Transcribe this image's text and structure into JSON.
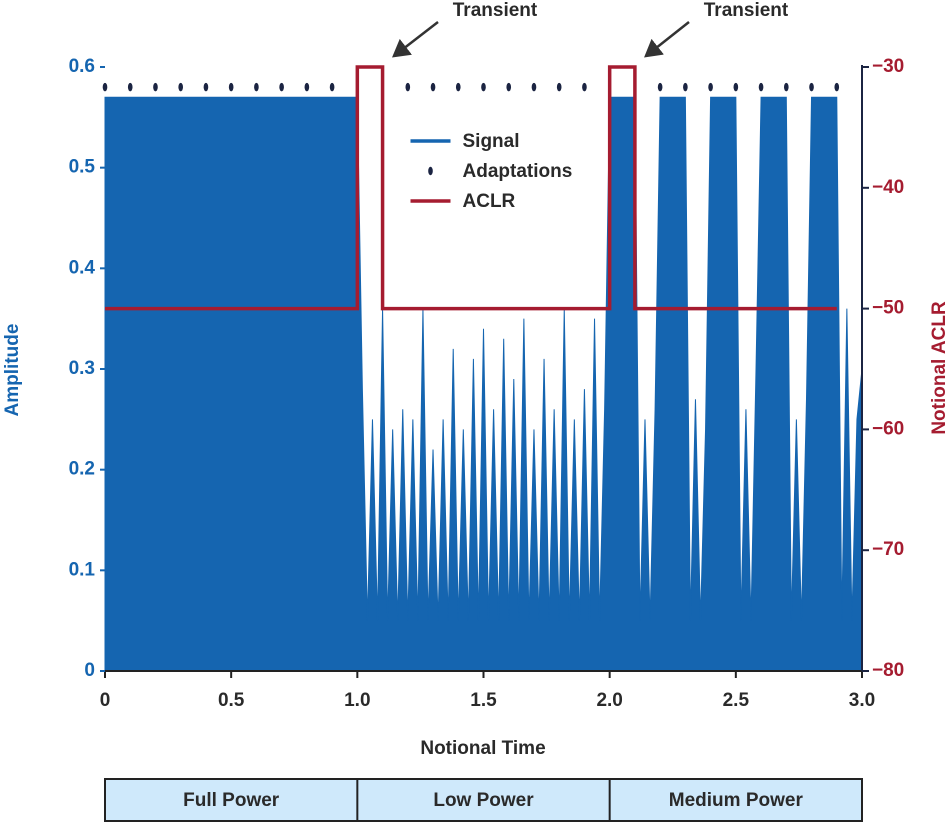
{
  "chart_data": {
    "type": "line",
    "xlabel": "Notional Time",
    "ylabel": "Amplitude",
    "y2label": "Notional ACLR",
    "xlim": [
      0,
      3
    ],
    "xticks": [
      0,
      0.5,
      {
        "value": 1,
        "label": "1.0"
      },
      1.5,
      {
        "value": 2,
        "label": "2.0"
      },
      2.5,
      {
        "value": 3,
        "label": "3.0"
      }
    ],
    "ylim": [
      0,
      0.6
    ],
    "yticks": [
      0,
      0.1,
      0.2,
      0.3,
      0.4,
      0.5,
      0.6
    ],
    "y2lim": [
      -80,
      -30
    ],
    "y2ticks": [
      {
        "value": -80,
        "label": "−80"
      },
      {
        "value": -70,
        "label": "−70"
      },
      {
        "value": -60,
        "label": "−60"
      },
      {
        "value": -50,
        "label": "−50"
      },
      {
        "value": -40,
        "label": "−40"
      },
      {
        "value": -30,
        "label": "−30"
      }
    ],
    "grid": false,
    "legend": "upper center",
    "annotations": [
      "Transient",
      "Transient"
    ],
    "phases": [
      "Full Power",
      "Low Power",
      "Medium Power"
    ],
    "series": [
      {
        "name": "Signal",
        "type": "area",
        "color": "#1565b0",
        "x": [
          0,
          0.02,
          0.04,
          0.06,
          0.08,
          0.1,
          0.12,
          0.14,
          0.16,
          0.18,
          0.2,
          0.22,
          0.24,
          0.26,
          0.28,
          0.3,
          0.32,
          0.34,
          0.36,
          0.38,
          0.4,
          0.42,
          0.44,
          0.46,
          0.48,
          0.5,
          0.52,
          0.54,
          0.56,
          0.58,
          0.6,
          0.62,
          0.64,
          0.66,
          0.68,
          0.7,
          0.72,
          0.74,
          0.76,
          0.78,
          0.8,
          0.82,
          0.84,
          0.86,
          0.88,
          0.9,
          0.92,
          0.94,
          0.96,
          0.98,
          1,
          1.02,
          1.04,
          1.06,
          1.08,
          1.1,
          1.12,
          1.14,
          1.16,
          1.18,
          1.2,
          1.22,
          1.24,
          1.26,
          1.28,
          1.3,
          1.32,
          1.34,
          1.36,
          1.38,
          1.4,
          1.42,
          1.44,
          1.46,
          1.48,
          1.5,
          1.52,
          1.54,
          1.56,
          1.58,
          1.6,
          1.62,
          1.64,
          1.66,
          1.68,
          1.7,
          1.72,
          1.74,
          1.76,
          1.78,
          1.8,
          1.82,
          1.84,
          1.86,
          1.88,
          1.9,
          1.92,
          1.94,
          1.96,
          1.98,
          2,
          2.02,
          2.04,
          2.06,
          2.08,
          2.1,
          2.12,
          2.14,
          2.16,
          2.18,
          2.2,
          2.22,
          2.24,
          2.26,
          2.28,
          2.3,
          2.32,
          2.34,
          2.36,
          2.38,
          2.4,
          2.42,
          2.44,
          2.46,
          2.48,
          2.5,
          2.52,
          2.54,
          2.56,
          2.58,
          2.6,
          2.62,
          2.64,
          2.66,
          2.68,
          2.7,
          2.72,
          2.74,
          2.76,
          2.78,
          2.8,
          2.82,
          2.84,
          2.86,
          2.88,
          2.9,
          2.92,
          2.94,
          2.96,
          2.98,
          3
        ],
        "values": [
          0.57,
          0.57,
          0.57,
          0.57,
          0.57,
          0.57,
          0.57,
          0.57,
          0.57,
          0.57,
          0.57,
          0.57,
          0.57,
          0.57,
          0.57,
          0.57,
          0.57,
          0.57,
          0.57,
          0.57,
          0.57,
          0.57,
          0.57,
          0.57,
          0.57,
          0.57,
          0.57,
          0.57,
          0.57,
          0.57,
          0.57,
          0.57,
          0.57,
          0.57,
          0.57,
          0.57,
          0.57,
          0.57,
          0.57,
          0.57,
          0.57,
          0.57,
          0.57,
          0.57,
          0.57,
          0.57,
          0.57,
          0.57,
          0.57,
          0.57,
          0.57,
          0.28,
          0.05,
          0.25,
          0.05,
          0.36,
          0.05,
          0.24,
          0.05,
          0.26,
          0.05,
          0.25,
          0.05,
          0.36,
          0.05,
          0.22,
          0.05,
          0.25,
          0.05,
          0.32,
          0.05,
          0.24,
          0.05,
          0.31,
          0.05,
          0.34,
          0.05,
          0.26,
          0.05,
          0.33,
          0.05,
          0.29,
          0.05,
          0.35,
          0.05,
          0.24,
          0.05,
          0.31,
          0.05,
          0.26,
          0.05,
          0.36,
          0.05,
          0.25,
          0.05,
          0.28,
          0.05,
          0.35,
          0.05,
          0.26,
          0.57,
          0.57,
          0.57,
          0.57,
          0.57,
          0.57,
          0.05,
          0.25,
          0.05,
          0.26,
          0.57,
          0.57,
          0.57,
          0.57,
          0.57,
          0.57,
          0.05,
          0.27,
          0.05,
          0.24,
          0.57,
          0.57,
          0.57,
          0.57,
          0.57,
          0.57,
          0.05,
          0.26,
          0.05,
          0.3,
          0.57,
          0.57,
          0.57,
          0.57,
          0.57,
          0.57,
          0.05,
          0.25,
          0.05,
          0.27,
          0.57,
          0.57,
          0.57,
          0.57,
          0.57,
          0.57,
          0.05,
          0.36,
          0.05,
          0.25,
          0.3
        ]
      },
      {
        "name": "Adaptations",
        "type": "scatter",
        "color": "#1b2442",
        "x": [
          0,
          0.1,
          0.2,
          0.3,
          0.4,
          0.5,
          0.6,
          0.7,
          0.8,
          0.9,
          1.2,
          1.3,
          1.4,
          1.5,
          1.6,
          1.7,
          1.8,
          1.9,
          2.2,
          2.3,
          2.4,
          2.5,
          2.6,
          2.7,
          2.8,
          2.9
        ],
        "values": [
          0.58,
          0.58,
          0.58,
          0.58,
          0.58,
          0.58,
          0.58,
          0.58,
          0.58,
          0.58,
          0.58,
          0.58,
          0.58,
          0.58,
          0.58,
          0.58,
          0.58,
          0.58,
          0.58,
          0.58,
          0.58,
          0.58,
          0.58,
          0.58,
          0.58,
          0.58
        ]
      },
      {
        "name": "ACLR",
        "type": "line",
        "axis": "y2",
        "color": "#a51c30",
        "x": [
          0,
          1,
          1,
          1.1,
          1.1,
          2,
          2,
          2.1,
          2.1,
          2.9
        ],
        "values": [
          -50,
          -50,
          -30,
          -30,
          -50,
          -50,
          -30,
          -30,
          -50,
          -50
        ]
      }
    ]
  }
}
